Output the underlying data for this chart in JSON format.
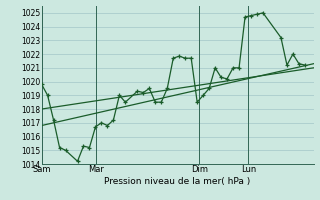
{
  "title": "",
  "xlabel": "Pression niveau de la mer( hPa )",
  "bg_color": "#cce8e0",
  "grid_color": "#aacccc",
  "line_color": "#1a5c2a",
  "vline_color": "#336655",
  "ylim": [
    1014,
    1025.5
  ],
  "yticks": [
    1014,
    1015,
    1016,
    1017,
    1018,
    1019,
    1020,
    1021,
    1022,
    1023,
    1024,
    1025
  ],
  "day_labels": [
    "Sam",
    "Mar",
    "Dim",
    "Lun"
  ],
  "day_positions": [
    0.0,
    0.2,
    0.58,
    0.76
  ],
  "xlim": [
    0.0,
    1.0
  ],
  "series1_x": [
    0.0,
    0.022,
    0.044,
    0.066,
    0.088,
    0.132,
    0.154,
    0.176,
    0.198,
    0.22,
    0.242,
    0.264,
    0.286,
    0.308,
    0.352,
    0.374,
    0.396,
    0.418,
    0.44,
    0.462,
    0.484,
    0.506,
    0.528,
    0.55,
    0.572,
    0.594,
    0.616,
    0.638,
    0.66,
    0.682,
    0.704,
    0.726,
    0.748,
    0.77,
    0.792,
    0.814,
    0.88,
    0.902,
    0.924,
    0.946,
    0.968
  ],
  "series1_y": [
    1019.8,
    1019.0,
    1017.2,
    1015.2,
    1015.0,
    1014.2,
    1015.3,
    1015.2,
    1016.7,
    1017.0,
    1016.8,
    1017.2,
    1019.0,
    1018.5,
    1019.3,
    1019.2,
    1019.5,
    1018.5,
    1018.5,
    1019.5,
    1021.7,
    1021.85,
    1021.7,
    1021.7,
    1018.5,
    1019.0,
    1019.5,
    1021.0,
    1020.3,
    1020.2,
    1021.0,
    1021.0,
    1024.7,
    1024.8,
    1024.9,
    1025.0,
    1023.2,
    1021.2,
    1022.0,
    1021.3,
    1021.2
  ],
  "trend1_x": [
    0.0,
    1.0
  ],
  "trend1_y": [
    1016.8,
    1021.3
  ],
  "trend2_x": [
    0.0,
    1.0
  ],
  "trend2_y": [
    1018.0,
    1021.0
  ]
}
